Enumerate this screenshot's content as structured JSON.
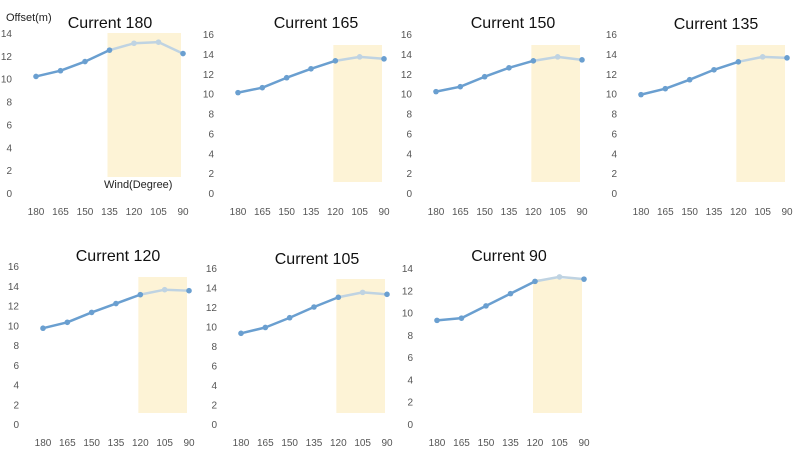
{
  "figure": {
    "y_axis_label": "Offset(m)",
    "x_axis_label": "Wind(Degree)"
  },
  "style": {
    "line_color": "#6a9fd0",
    "line_highlight_color": "#bfd3e2",
    "highlight_fill": "#fdf3d6",
    "tick_label_color": "#555555",
    "title_color": "#111111"
  },
  "chart_data": [
    {
      "type": "line",
      "title": "Current 180",
      "categories": [
        "180",
        "165",
        "150",
        "135",
        "120",
        "105",
        "90"
      ],
      "values": [
        10.2,
        10.7,
        11.5,
        12.5,
        13.1,
        13.2,
        12.2
      ],
      "ylim": [
        0,
        14
      ],
      "yticks": [
        0,
        2,
        4,
        6,
        8,
        10,
        12,
        14
      ],
      "highlight": {
        "x_from": "135",
        "x_to": "90"
      }
    },
    {
      "type": "line",
      "title": "Current 165",
      "categories": [
        "180",
        "165",
        "150",
        "135",
        "120",
        "105",
        "90"
      ],
      "values": [
        10.1,
        10.6,
        11.6,
        12.5,
        13.3,
        13.7,
        13.5
      ],
      "ylim": [
        0,
        16
      ],
      "yticks": [
        0,
        2,
        4,
        6,
        8,
        10,
        12,
        14,
        16
      ],
      "highlight": {
        "x_from": "120",
        "x_to": "90"
      }
    },
    {
      "type": "line",
      "title": "Current 150",
      "categories": [
        "180",
        "165",
        "150",
        "135",
        "120",
        "105",
        "90"
      ],
      "values": [
        10.2,
        10.7,
        11.7,
        12.6,
        13.3,
        13.7,
        13.4
      ],
      "ylim": [
        0,
        16
      ],
      "yticks": [
        0,
        2,
        4,
        6,
        8,
        10,
        12,
        14,
        16
      ],
      "highlight": {
        "x_from": "120",
        "x_to": "90"
      }
    },
    {
      "type": "line",
      "title": "Current 135",
      "categories": [
        "180",
        "165",
        "150",
        "135",
        "120",
        "105",
        "90"
      ],
      "values": [
        9.9,
        10.5,
        11.4,
        12.4,
        13.2,
        13.7,
        13.6
      ],
      "ylim": [
        0,
        16
      ],
      "yticks": [
        0,
        2,
        4,
        6,
        8,
        10,
        12,
        14,
        16
      ],
      "highlight": {
        "x_from": "120",
        "x_to": "90"
      }
    },
    {
      "type": "line",
      "title": "Current 120",
      "categories": [
        "180",
        "165",
        "150",
        "135",
        "120",
        "105",
        "90"
      ],
      "values": [
        9.7,
        10.3,
        11.3,
        12.2,
        13.1,
        13.6,
        13.5
      ],
      "ylim": [
        0,
        16
      ],
      "yticks": [
        0,
        2,
        4,
        6,
        8,
        10,
        12,
        14,
        16
      ],
      "highlight": {
        "x_from": "120",
        "x_to": "90"
      }
    },
    {
      "type": "line",
      "title": "Current 105",
      "categories": [
        "180",
        "165",
        "150",
        "135",
        "120",
        "105",
        "90"
      ],
      "values": [
        9.3,
        9.9,
        10.9,
        12.0,
        13.0,
        13.5,
        13.3
      ],
      "ylim": [
        0,
        16
      ],
      "yticks": [
        0,
        2,
        4,
        6,
        8,
        10,
        12,
        14,
        16
      ],
      "highlight": {
        "x_from": "120",
        "x_to": "90"
      }
    },
    {
      "type": "line",
      "title": "Current 90",
      "categories": [
        "180",
        "165",
        "150",
        "135",
        "120",
        "105",
        "90"
      ],
      "values": [
        9.3,
        9.5,
        10.6,
        11.7,
        12.8,
        13.2,
        13.0
      ],
      "ylim": [
        0,
        14
      ],
      "yticks": [
        0,
        2,
        4,
        6,
        8,
        10,
        12,
        14
      ],
      "highlight": {
        "x_from": "120",
        "x_to": "90"
      }
    }
  ]
}
